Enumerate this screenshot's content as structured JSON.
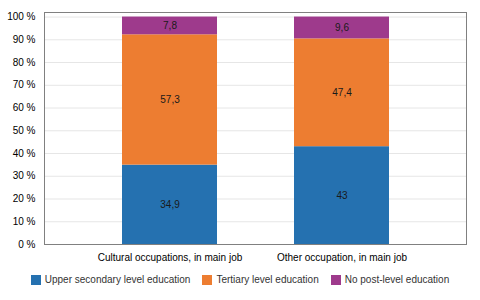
{
  "chart_data": {
    "type": "bar",
    "stacked": true,
    "data_labels": true,
    "grid": true,
    "legend": "bottom",
    "categories": [
      "Cultural occupations, in main job",
      "Other occupation, in main job"
    ],
    "series": [
      {
        "name": "Upper secondary level education",
        "color": "#2571b0",
        "values": [
          34.9,
          43.0
        ],
        "value_labels": [
          "34,9",
          "43"
        ]
      },
      {
        "name": "Tertiary level education",
        "color": "#ed7d31",
        "values": [
          57.3,
          47.4
        ],
        "value_labels": [
          "57,3",
          "47,4"
        ]
      },
      {
        "name": "No post-level education",
        "color": "#9e3a8c",
        "values": [
          7.8,
          9.6
        ],
        "value_labels": [
          "7,8",
          "9,6"
        ]
      }
    ],
    "ylim": [
      0,
      102
    ],
    "yticks": [
      {
        "value": 0,
        "label": "0 %"
      },
      {
        "value": 10,
        "label": "10 %"
      },
      {
        "value": 20,
        "label": "20 %"
      },
      {
        "value": 30,
        "label": "30 %"
      },
      {
        "value": 40,
        "label": "40 %"
      },
      {
        "value": 50,
        "label": "50 %"
      },
      {
        "value": 60,
        "label": "60 %"
      },
      {
        "value": 70,
        "label": "70 %"
      },
      {
        "value": 80,
        "label": "80 %"
      },
      {
        "value": 90,
        "label": "90 %"
      },
      {
        "value": 100,
        "label": "100 %"
      }
    ]
  }
}
